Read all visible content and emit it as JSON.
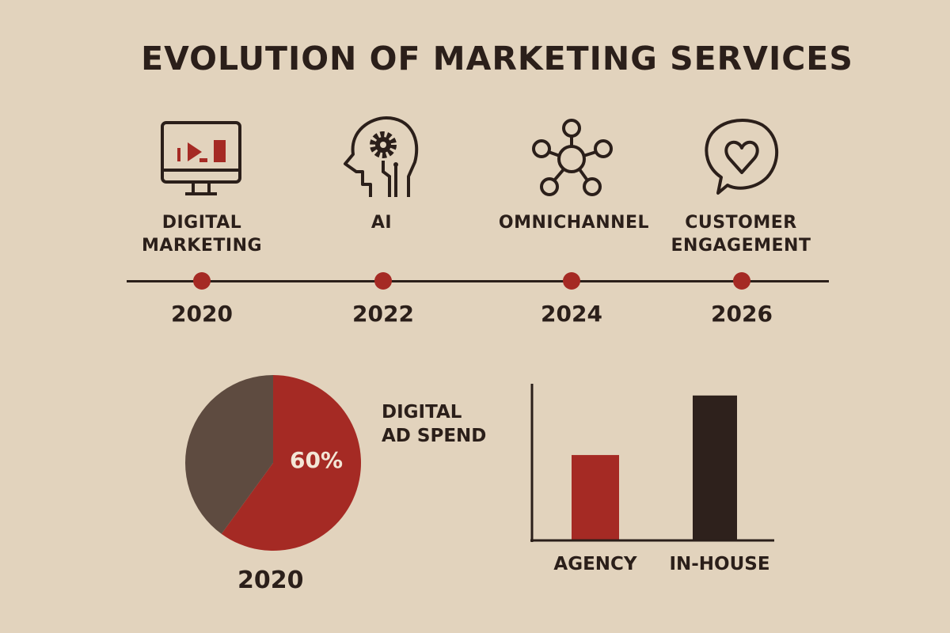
{
  "title": "EVOLUTION OF MARKETING SERVICES",
  "colors": {
    "background": "#e2d3bd",
    "accent": "#a52a24",
    "dark": "#2e211c",
    "muted": "#5e4b40"
  },
  "timeline": [
    {
      "icon": "monitor-chart-icon",
      "label_lines": [
        "DIGITAL",
        "MARKETING"
      ],
      "year": "2020"
    },
    {
      "icon": "head-gear-ai-icon",
      "label_lines": [
        "AI"
      ],
      "year": "2022"
    },
    {
      "icon": "network-hub-icon",
      "label_lines": [
        "OMNICHANNEL"
      ],
      "year": "2024"
    },
    {
      "icon": "chat-heart-icon",
      "label_lines": [
        "CUSTOMER",
        "ENGAGEMENT"
      ],
      "year": "2026"
    }
  ],
  "chart_data": [
    {
      "type": "pie",
      "label_lines": [
        "DIGITAL",
        "AD SPEND"
      ],
      "caption": "2020",
      "slices": [
        {
          "label": "60%",
          "value": 60,
          "color": "#a52a24"
        },
        {
          "value": 40,
          "color": "#5e4b40"
        }
      ]
    },
    {
      "type": "bar",
      "categories": [
        "AGENCY",
        "IN-HOUSE"
      ],
      "values": [
        0.54,
        0.92
      ],
      "colors": [
        "#a52a24",
        "#2e211c"
      ],
      "ylim": [
        0,
        1
      ]
    }
  ]
}
